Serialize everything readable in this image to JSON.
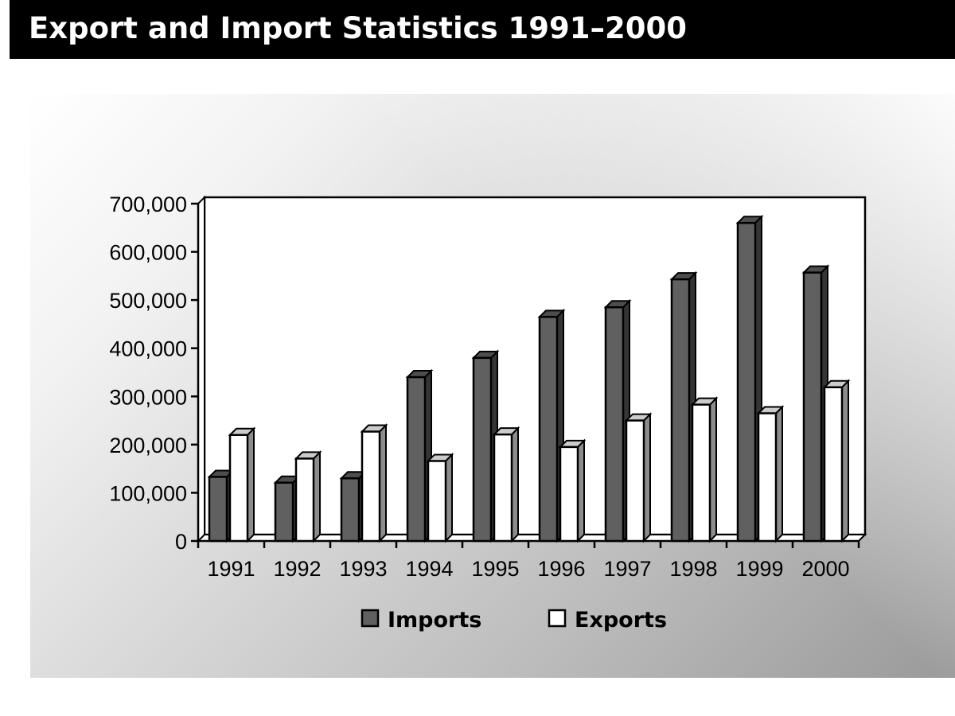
{
  "title": "Export and Import Statistics 1991–2000",
  "chart_data": {
    "type": "bar",
    "title": "Export and Import Statistics 1991–2000",
    "xlabel": "",
    "ylabel": "",
    "ylim": [
      0,
      700000
    ],
    "y_ticks": [
      0,
      100000,
      200000,
      300000,
      400000,
      500000,
      600000,
      700000
    ],
    "y_tick_labels": [
      "0",
      "100,000",
      "200,000",
      "300,000",
      "400,000",
      "500,000",
      "600,000",
      "700,000"
    ],
    "categories": [
      "1991",
      "1992",
      "1993",
      "1994",
      "1995",
      "1996",
      "1997",
      "1998",
      "1999",
      "2000"
    ],
    "series": [
      {
        "name": "Imports",
        "color": "#606060",
        "values": [
          133000,
          121000,
          130000,
          340000,
          380000,
          465000,
          485000,
          543000,
          660000,
          557000
        ]
      },
      {
        "name": "Exports",
        "color": "#ffffff",
        "values": [
          220000,
          171000,
          227000,
          166000,
          221000,
          195000,
          250000,
          283000,
          265000,
          319000
        ]
      }
    ],
    "grid": false,
    "legend_position": "bottom"
  }
}
